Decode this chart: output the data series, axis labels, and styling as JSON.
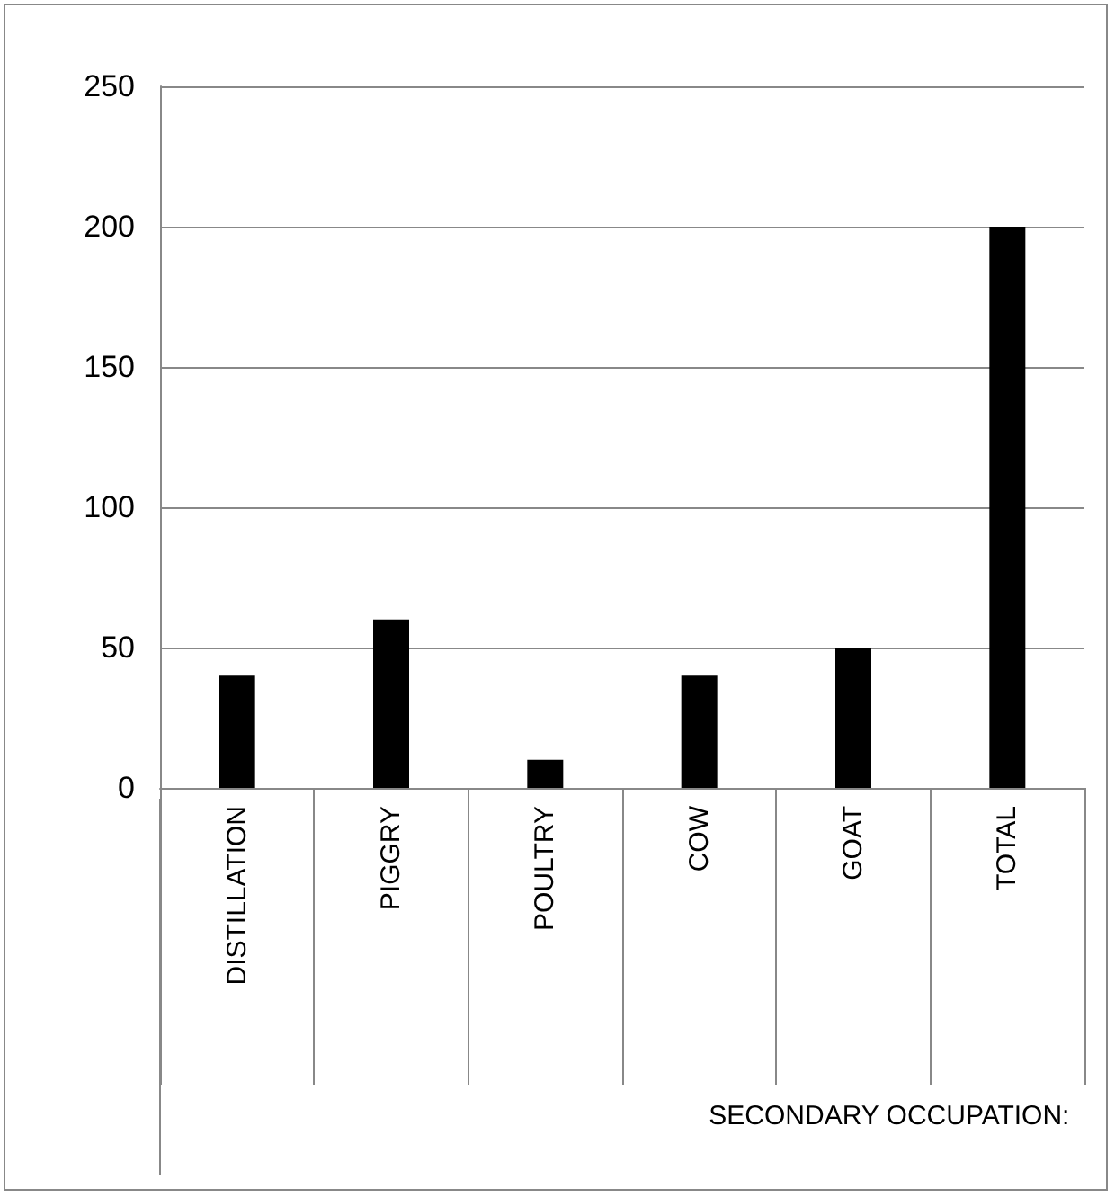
{
  "chart_data": {
    "type": "bar",
    "categories": [
      "DISTILLATION",
      "PIGGRY",
      "POULTRY",
      "COW",
      "GOAT",
      "TOTAL"
    ],
    "values": [
      40,
      60,
      10,
      40,
      50,
      200
    ],
    "color": "#000000",
    "xlabel": "SECONDARY OCCUPATION:",
    "ylim": [
      0,
      250
    ],
    "yticks": [
      0,
      50,
      100,
      150,
      200,
      250
    ],
    "grid": "y"
  }
}
